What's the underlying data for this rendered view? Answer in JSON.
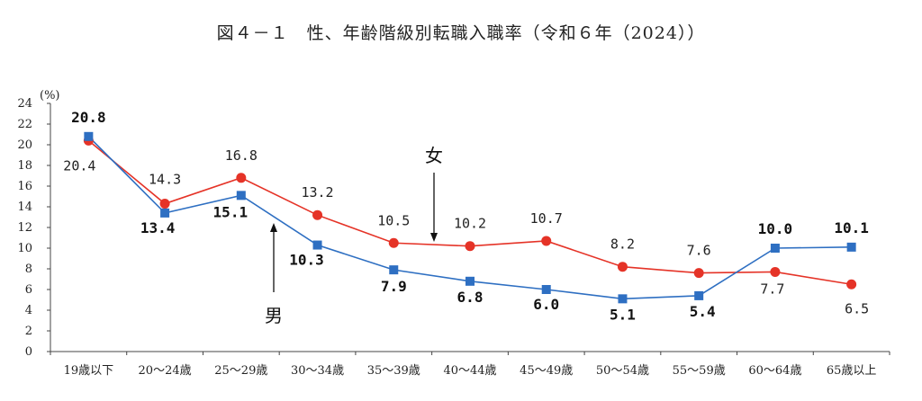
{
  "chart_data": {
    "type": "line",
    "title": "図４－１　性、年齢階級別転職入職率（令和６年（2024））",
    "ylabel": "(%)",
    "ylim": [
      0,
      24
    ],
    "yticks": [
      "0",
      "2",
      "4",
      "6",
      "8",
      "10",
      "12",
      "14",
      "16",
      "18",
      "20",
      "22",
      "24"
    ],
    "categories": [
      "19歳以下",
      "20～24歳",
      "25～29歳",
      "30～34歳",
      "35～39歳",
      "40～44歳",
      "45～49歳",
      "50～54歳",
      "55～59歳",
      "60～64歳",
      "65歳以上"
    ],
    "series": [
      {
        "name": "男",
        "color": "#2e6fc2",
        "marker": "square",
        "values": [
          20.8,
          13.4,
          15.1,
          10.3,
          7.9,
          6.8,
          6.0,
          5.1,
          5.4,
          10.0,
          10.1
        ],
        "labels": [
          "20.8",
          "13.4",
          "15.1",
          "10.3",
          "7.9",
          "6.8",
          "6.0",
          "5.1",
          "5.4",
          "10.0",
          "10.1"
        ]
      },
      {
        "name": "女",
        "color": "#e53327",
        "marker": "circle",
        "values": [
          20.4,
          14.3,
          16.8,
          13.2,
          10.5,
          10.2,
          10.7,
          8.2,
          7.6,
          7.7,
          6.5
        ],
        "labels": [
          "20.4",
          "14.3",
          "16.8",
          "13.2",
          "10.5",
          "10.2",
          "10.7",
          "8.2",
          "7.6",
          "7.7",
          "6.5"
        ]
      }
    ],
    "grid": false,
    "legend": "none"
  }
}
